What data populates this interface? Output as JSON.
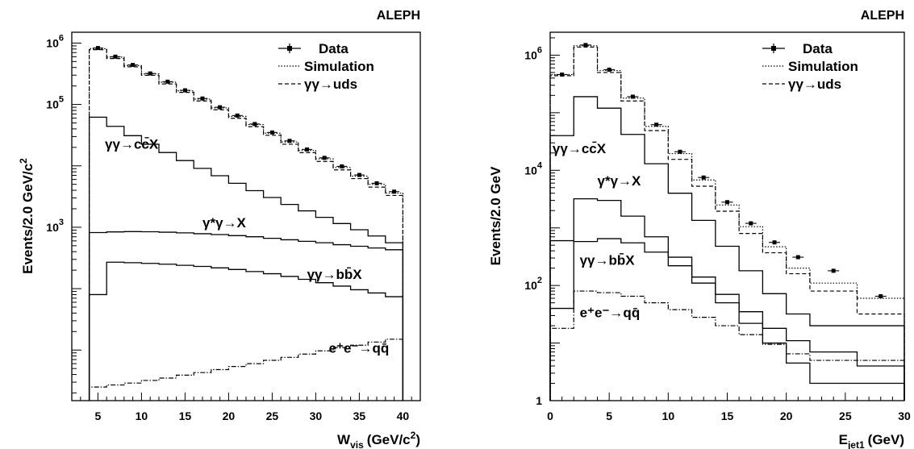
{
  "chart_data": [
    {
      "type": "line",
      "experiment": "ALEPH",
      "xlabel": "W",
      "xlabel_sub": "vis",
      "xlabel_unit": "(GeV/c",
      "xlabel_sup": "2",
      "xlabel_tail": ")",
      "ylabel": "Events/2.0 GeV/c",
      "ylabel_sup": "2",
      "yscale": "log",
      "xlim": [
        2,
        42
      ],
      "ylim": [
        1.5,
        1500000
      ],
      "x_ticks": [
        5,
        10,
        15,
        20,
        25,
        30,
        35,
        40
      ],
      "x_tick_labels": [
        "5",
        "10",
        "15",
        "20",
        "25",
        "30",
        "35",
        "40"
      ],
      "y_ticks": [
        1000,
        100000,
        1000000
      ],
      "y_tick_labels": [
        {
          "base": "10",
          "exp": "3"
        },
        {
          "base": "10",
          "exp": "5"
        },
        {
          "base": "10",
          "exp": "6"
        }
      ],
      "bin_edges": [
        4,
        6,
        8,
        10,
        12,
        14,
        16,
        18,
        20,
        22,
        24,
        26,
        28,
        30,
        32,
        34,
        36,
        38,
        40
      ],
      "series": [
        {
          "name": "Data",
          "style": "points",
          "values": [
            830000,
            600000,
            440000,
            320000,
            235000,
            170000,
            125000,
            90000,
            66000,
            48000,
            35000,
            25500,
            18500,
            13500,
            9800,
            7100,
            5200,
            3800
          ]
        },
        {
          "name": "Simulation",
          "style": "dotted",
          "values": [
            810000,
            590000,
            430000,
            315000,
            230000,
            167000,
            122000,
            88000,
            64000,
            47000,
            34000,
            24500,
            17800,
            13000,
            9400,
            6800,
            5000,
            3600
          ]
        },
        {
          "name": "γγ→uds",
          "style": "dashed",
          "values": [
            780000,
            560000,
            410000,
            298000,
            216000,
            157000,
            114000,
            82000,
            59500,
            43500,
            31500,
            22500,
            16400,
            11800,
            8600,
            6200,
            4500,
            3300
          ]
        },
        {
          "name": "γγ→cc̄X",
          "style": "solid",
          "values": [
            62000,
            44000,
            31000,
            22500,
            16500,
            12200,
            9100,
            6900,
            5200,
            3950,
            3050,
            2350,
            1850,
            1450,
            1150,
            910,
            720,
            560
          ]
        },
        {
          "name": "γ*γ→X",
          "style": "solid",
          "values": [
            820,
            840,
            850,
            845,
            830,
            810,
            785,
            760,
            730,
            700,
            660,
            625,
            590,
            560,
            520,
            490,
            460,
            430
          ]
        },
        {
          "name": "γγ→bb̄X",
          "style": "solid",
          "values": [
            80,
            270,
            265,
            258,
            250,
            240,
            230,
            218,
            205,
            190,
            175,
            158,
            142,
            125,
            110,
            96,
            85,
            74
          ]
        },
        {
          "name": "e⁺e⁻→qq̄",
          "style": "dashdot",
          "values": [
            2.5,
            2.7,
            2.9,
            3.2,
            3.5,
            3.9,
            4.3,
            4.8,
            5.4,
            6.0,
            6.8,
            7.6,
            8.6,
            9.7,
            11,
            12,
            13.5,
            15
          ]
        }
      ],
      "annotations": [
        {
          "text": "γγ→cc̄X",
          "x": 5.8,
          "y": 19000
        },
        {
          "text": "γ*γ→X",
          "x": 17,
          "y": 1000
        },
        {
          "text": "γγ→bb̄X",
          "x": 29,
          "y": 145
        },
        {
          "text": "e⁺e⁻→qq̄",
          "x": 31.5,
          "y": 9
        }
      ],
      "legend": {
        "position": "top-right",
        "entries": [
          "Data",
          "Simulation",
          "γγ→uds"
        ]
      }
    },
    {
      "type": "line",
      "experiment": "ALEPH",
      "xlabel": "E",
      "xlabel_sub": "jet1",
      "xlabel_unit": "(GeV)",
      "ylabel": "Events/2.0 GeV",
      "yscale": "log",
      "xlim": [
        0,
        30
      ],
      "ylim": [
        1,
        2500000
      ],
      "x_ticks": [
        0,
        5,
        10,
        15,
        20,
        25,
        30
      ],
      "x_tick_labels": [
        "0",
        "5",
        "10",
        "15",
        "20",
        "25",
        "30"
      ],
      "y_ticks": [
        1,
        100,
        10000,
        1000000
      ],
      "y_tick_labels": [
        {
          "base": "1",
          "exp": ""
        },
        {
          "base": "10",
          "exp": "2"
        },
        {
          "base": "10",
          "exp": "4"
        },
        {
          "base": "10",
          "exp": "6"
        }
      ],
      "bin_edges": [
        0,
        2,
        4,
        6,
        8,
        10,
        12,
        14,
        16,
        18,
        20,
        22,
        26,
        30
      ],
      "series": [
        {
          "name": "Data",
          "style": "points",
          "values": [
            460000,
            1500000,
            560000,
            190000,
            62000,
            21000,
            7500,
            2800,
            1200,
            560,
            310,
            180,
            65
          ]
        },
        {
          "name": "Simulation",
          "style": "dotted",
          "values": [
            460000,
            1450000,
            540000,
            180000,
            58000,
            19500,
            6800,
            2500,
            1050,
            470,
            200,
            110,
            60
          ]
        },
        {
          "name": "γγ→uds",
          "style": "dashed",
          "values": [
            440000,
            1380000,
            500000,
            160000,
            49000,
            15500,
            5300,
            1950,
            800,
            370,
            160,
            80,
            32
          ]
        },
        {
          "name": "γγ→cc̄X",
          "style": "solid",
          "values": [
            40000,
            190000,
            120000,
            42000,
            13000,
            4000,
            1350,
            480,
            180,
            72,
            32,
            20,
            20
          ]
        },
        {
          "name": "γ*γ→X",
          "style": "solid",
          "values": [
            600,
            3200,
            3000,
            1600,
            700,
            310,
            140,
            70,
            35,
            18,
            11,
            7,
            4
          ]
        },
        {
          "name": "γγ→bb̄X",
          "style": "solid",
          "values": [
            40,
            580,
            650,
            550,
            380,
            220,
            110,
            50,
            22,
            10,
            4.5,
            2,
            2
          ]
        },
        {
          "name": "e⁺e⁻→qq̄",
          "style": "dashdot",
          "values": [
            18,
            80,
            75,
            65,
            50,
            38,
            28,
            20,
            14,
            9.5,
            6.5,
            5,
            5
          ]
        }
      ],
      "annotations": [
        {
          "text": "γγ→cc̄X",
          "x": 0.2,
          "y": 20000
        },
        {
          "text": "γ*γ→X",
          "x": 4,
          "y": 5500
        },
        {
          "text": "γγ→bb̄X",
          "x": 2.5,
          "y": 230
        },
        {
          "text": "e⁺e⁻→qq̄",
          "x": 2.5,
          "y": 28
        }
      ],
      "legend": {
        "position": "top-right",
        "entries": [
          "Data",
          "Simulation",
          "γγ→uds"
        ]
      }
    }
  ]
}
